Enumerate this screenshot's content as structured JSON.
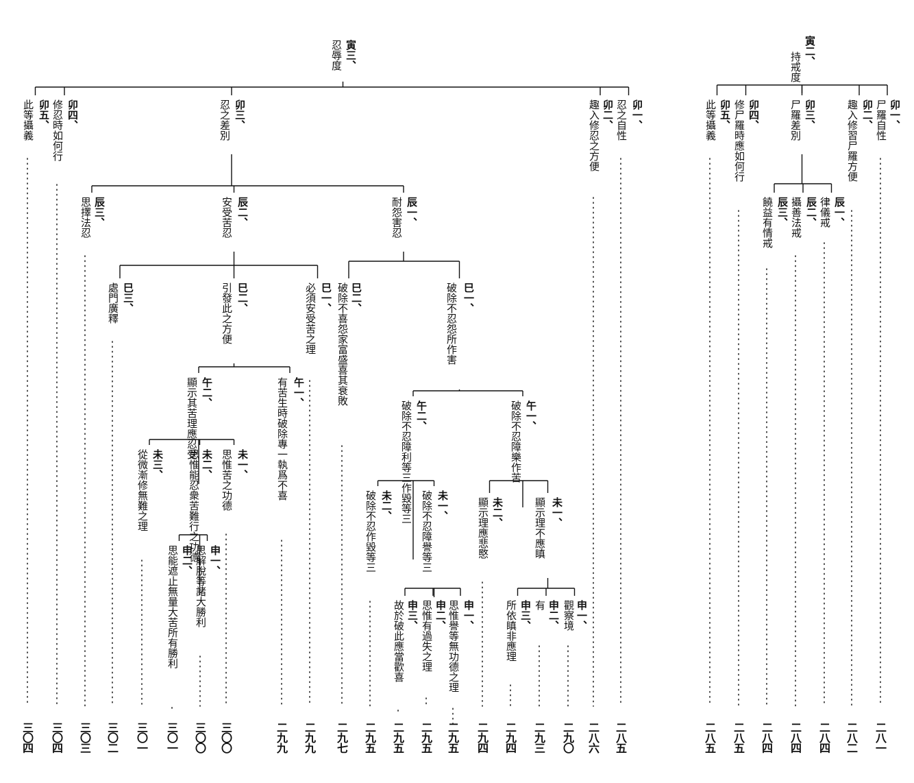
{
  "trees": [
    {
      "label": "寅三、",
      "title": "忍辱度",
      "children": [
        {
          "label": "卯一、",
          "title": "忍之自性",
          "page": "二八五"
        },
        {
          "label": "卯二、",
          "title": "趣入修忍之方便",
          "page": "二八六"
        },
        {
          "label": "卯三、",
          "title": "忍之差別",
          "children": [
            {
              "label": "辰一、",
              "title": "耐怨害忍",
              "children": [
                {
                  "label": "巳一、",
                  "title": "破除不忍怨所作害",
                  "children": [
                    {
                      "label": "午一、",
                      "title": "破除不忍障樂作苦",
                      "children": [
                        {
                          "label": "未一、",
                          "title": "顯示理不應瞋",
                          "children": [
                            {
                              "label": "申一、",
                              "title": "觀察境",
                              "page": "二九〇"
                            },
                            {
                              "label": "申二、",
                              "title": "有",
                              "page": "二九三"
                            },
                            {
                              "label": "申三、",
                              "title": "所依瞋非應理",
                              "page": "二九四"
                            }
                          ]
                        },
                        {
                          "label": "未二、",
                          "title": "顯示理應悲愍",
                          "page": "二九四"
                        }
                      ]
                    },
                    {
                      "label": "午二、",
                      "title": "破除不忍障利等三作毀等三",
                      "children": [
                        {
                          "label": "未一、",
                          "title": "破除不忍障譽等三",
                          "children": [
                            {
                              "label": "申一、",
                              "title": "思惟譽等無功德之理",
                              "page": "二九五"
                            },
                            {
                              "label": "申二、",
                              "title": "思惟有過失之理",
                              "page": "二九五"
                            },
                            {
                              "label": "申三、",
                              "title": "故於破此應當歡喜",
                              "page": "二九五"
                            }
                          ]
                        },
                        {
                          "label": "未二、",
                          "title": "破除不忍作毀等三",
                          "page": "二九五"
                        }
                      ]
                    }
                  ]
                },
                {
                  "label": "巳二、",
                  "title": "破除不喜怨家富盛喜其衰敗",
                  "page": "二九七"
                }
              ]
            },
            {
              "label": "辰二、",
              "title": "安受苦忍",
              "children": [
                {
                  "label": "巳一、",
                  "title": "必須安受苦之理",
                  "page": "二九九"
                },
                {
                  "label": "巳二、",
                  "title": "引發此之方便",
                  "children": [
                    {
                      "label": "午一、",
                      "title": "有苦生時破除專一執爲不喜",
                      "page": "二九九"
                    },
                    {
                      "label": "午二、",
                      "title": "顯示其苦理應忍受",
                      "children": [
                        {
                          "label": "未一、",
                          "title": "思惟苦之功德",
                          "page": "三〇〇"
                        },
                        {
                          "label": "未二、",
                          "title": "思惟能忍衆苦難行之功德",
                          "children": [
                            {
                              "label": "申一、",
                              "title": "思解脫等諸大勝利",
                              "page": "三〇〇"
                            },
                            {
                              "label": "申二、",
                              "title": "思能遮止無量大苦所有勝利",
                              "page": "三〇一"
                            }
                          ]
                        },
                        {
                          "label": "未三、",
                          "title": "從微漸修無難之理",
                          "page": "三〇一"
                        }
                      ]
                    }
                  ]
                },
                {
                  "label": "巳三、",
                  "title": "處門廣釋",
                  "page": "三〇二"
                }
              ]
            },
            {
              "label": "辰三、",
              "title": "思擇法忍",
              "page": "三〇三"
            }
          ]
        },
        {
          "label": "卯四、",
          "title": "修忍時如何行",
          "page": "三〇四"
        },
        {
          "label": "卯五、",
          "title": "此等攝義",
          "page": "三〇四"
        }
      ]
    },
    {
      "label": "寅二、",
      "title": "持戒度",
      "children": [
        {
          "label": "卯一、",
          "title": "尸羅自性",
          "page": "二八一"
        },
        {
          "label": "卯二、",
          "title": "趣入修習尸羅方便",
          "page": "二八二"
        },
        {
          "label": "卯三、",
          "title": "尸羅差別",
          "children": [
            {
              "label": "辰一、",
              "title": "律儀戒",
              "page": "二八四"
            },
            {
              "label": "辰二、",
              "title": "攝善法戒",
              "page": "二八四"
            },
            {
              "label": "辰三、",
              "title": "饒益有情戒",
              "page": "二八四"
            }
          ]
        },
        {
          "label": "卯四、",
          "title": "修尸羅時應如何行",
          "page": "二八五"
        },
        {
          "label": "卯五、",
          "title": "此等攝義",
          "page": "二八五"
        }
      ]
    }
  ]
}
